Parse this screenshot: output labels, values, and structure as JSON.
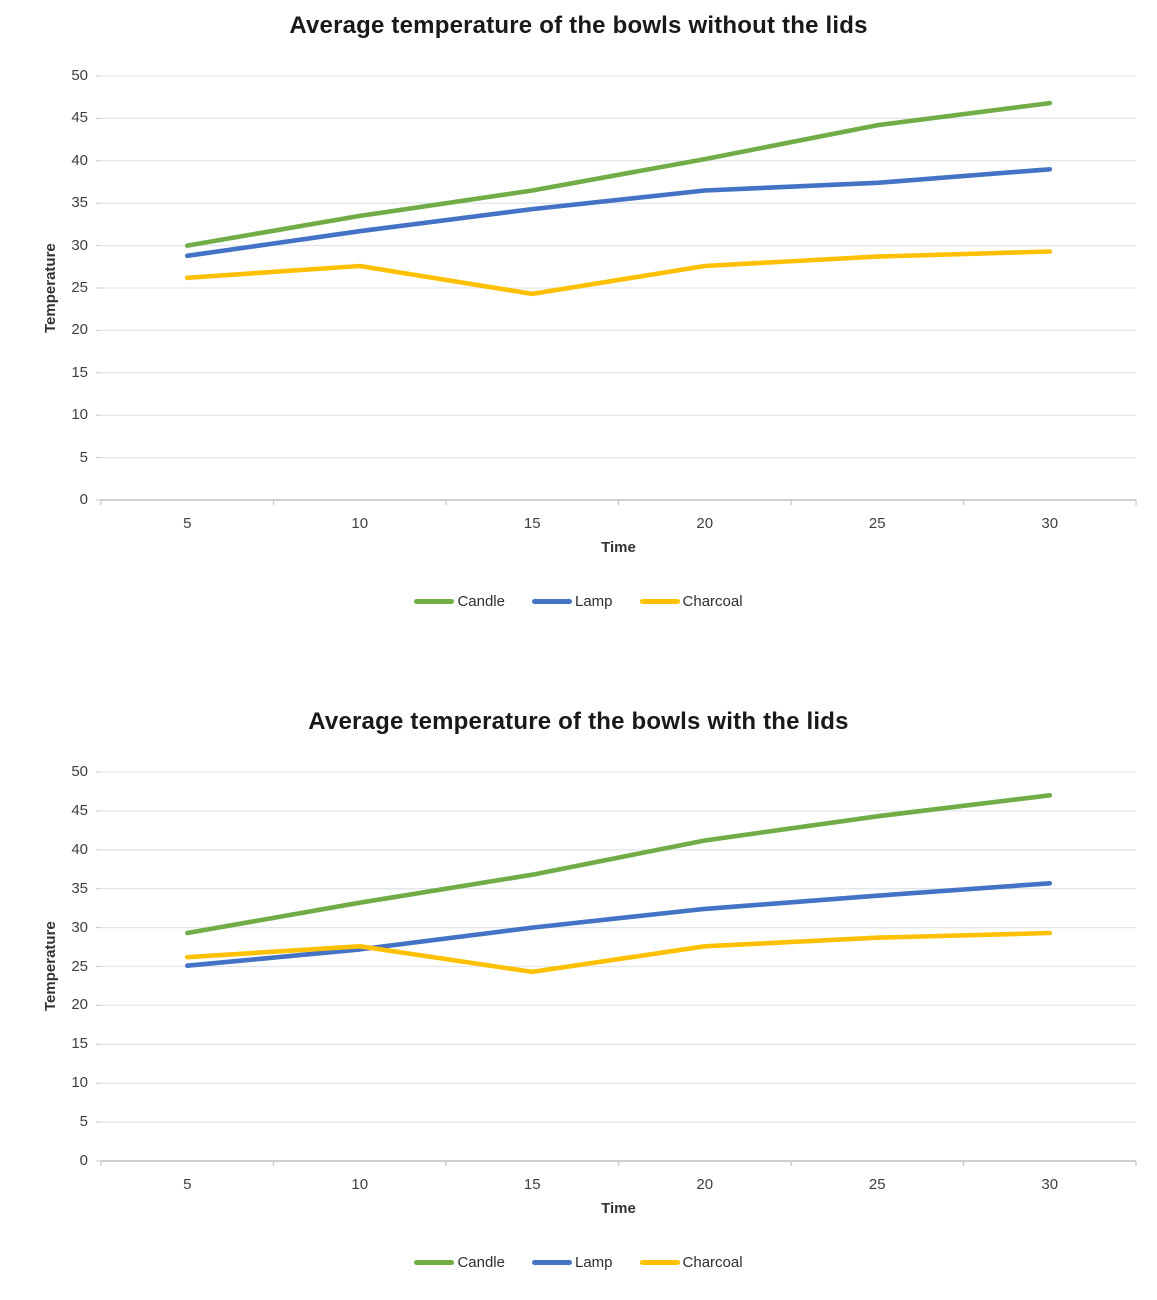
{
  "colors": {
    "gridline": "#e2e5e9",
    "axis": "#c6c9cc",
    "tick_label": "#3f3f3f",
    "title": "#191919",
    "candle": "#70AD47",
    "lamp": "#4472C4",
    "charcoal": "#FFC000"
  },
  "chart_data": [
    {
      "type": "line",
      "title": "Average temperature of the bowls without the lids",
      "xlabel": "Time",
      "ylabel": "Temperature",
      "x_categories": [
        5,
        10,
        15,
        20,
        25,
        30
      ],
      "ylim": [
        0,
        50
      ],
      "ytick_step": 5,
      "grid": true,
      "legend_position": "bottom",
      "series": [
        {
          "name": "Candle",
          "color": "#70AD47",
          "values": [
            30.0,
            33.5,
            36.5,
            40.2,
            44.2,
            46.8
          ]
        },
        {
          "name": "Lamp",
          "color": "#4472C4",
          "values": [
            28.8,
            31.7,
            34.3,
            36.5,
            37.4,
            39.0
          ]
        },
        {
          "name": "Charcoal",
          "color": "#FFC000",
          "values": [
            26.2,
            27.6,
            24.3,
            27.6,
            28.7,
            29.3
          ]
        }
      ]
    },
    {
      "type": "line",
      "title": "Average temperature of the bowls with the lids",
      "xlabel": "Time",
      "ylabel": "Temperature",
      "x_categories": [
        5,
        10,
        15,
        20,
        25,
        30
      ],
      "ylim": [
        0,
        50
      ],
      "ytick_step": 5,
      "grid": true,
      "legend_position": "bottom",
      "series": [
        {
          "name": "Candle",
          "color": "#70AD47",
          "values": [
            29.3,
            33.2,
            36.8,
            41.2,
            44.3,
            47.0
          ]
        },
        {
          "name": "Lamp",
          "color": "#4472C4",
          "values": [
            25.1,
            27.2,
            30.0,
            32.4,
            34.1,
            35.7
          ]
        },
        {
          "name": "Charcoal",
          "color": "#FFC000",
          "values": [
            26.2,
            27.6,
            24.3,
            27.6,
            28.7,
            29.3
          ]
        }
      ]
    }
  ]
}
